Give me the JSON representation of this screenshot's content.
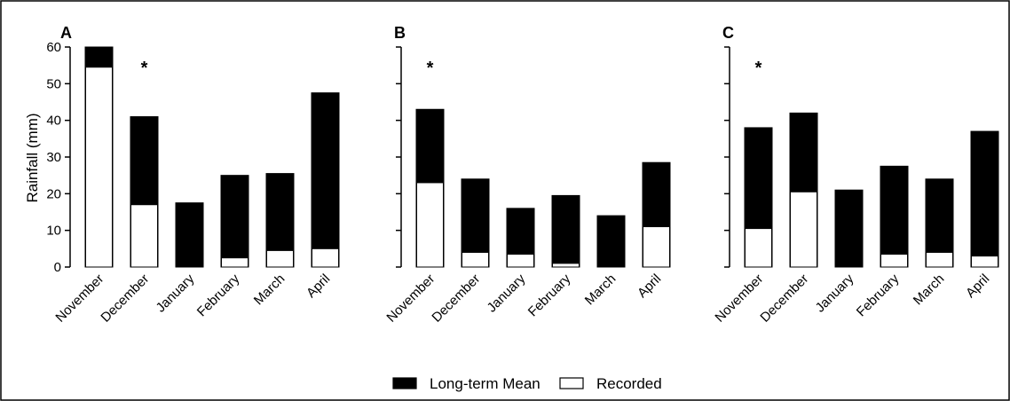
{
  "chart_data": [
    {
      "type": "bar",
      "panel_label": "A",
      "ylabel": "Rainfall (mm)",
      "ylim": [
        0,
        60
      ],
      "yticks": [
        0,
        10,
        20,
        30,
        40,
        50,
        60
      ],
      "categories": [
        "November",
        "December",
        "January",
        "February",
        "March",
        "April"
      ],
      "series": [
        {
          "name": "Long-term Mean",
          "values": [
            60,
            41,
            17.5,
            25,
            25.5,
            47.5
          ],
          "color": "#000000"
        },
        {
          "name": "Recorded",
          "values": [
            54.5,
            17,
            0,
            2.5,
            4.5,
            5
          ],
          "color": "#ffffff"
        }
      ],
      "annotations": [
        {
          "category": "December",
          "text": "*"
        }
      ]
    },
    {
      "type": "bar",
      "panel_label": "B",
      "ylim": [
        0,
        60
      ],
      "yticks": [
        0,
        10,
        20,
        30,
        40,
        50,
        60
      ],
      "categories": [
        "November",
        "December",
        "January",
        "February",
        "March",
        "April"
      ],
      "series": [
        {
          "name": "Long-term Mean",
          "values": [
            43,
            24,
            16,
            19.5,
            14,
            28.5
          ],
          "color": "#000000"
        },
        {
          "name": "Recorded",
          "values": [
            23,
            4,
            3.5,
            1,
            0,
            11
          ],
          "color": "#ffffff"
        }
      ],
      "annotations": [
        {
          "category": "November",
          "text": "*"
        }
      ]
    },
    {
      "type": "bar",
      "panel_label": "C",
      "ylim": [
        0,
        60
      ],
      "yticks": [
        0,
        10,
        20,
        30,
        40,
        50,
        60
      ],
      "categories": [
        "November",
        "December",
        "January",
        "February",
        "March",
        "April"
      ],
      "series": [
        {
          "name": "Long-term Mean",
          "values": [
            38,
            42,
            21,
            27.5,
            24,
            37
          ],
          "color": "#000000"
        },
        {
          "name": "Recorded",
          "values": [
            10.5,
            20.5,
            0,
            3.5,
            4,
            3
          ],
          "color": "#ffffff"
        }
      ],
      "annotations": [
        {
          "category": "November",
          "text": "*"
        }
      ]
    }
  ],
  "legend": {
    "placement": "bottom-center",
    "items": [
      {
        "label": "Long-term Mean",
        "color": "#000000"
      },
      {
        "label": "Recorded",
        "color": "#ffffff"
      }
    ]
  }
}
